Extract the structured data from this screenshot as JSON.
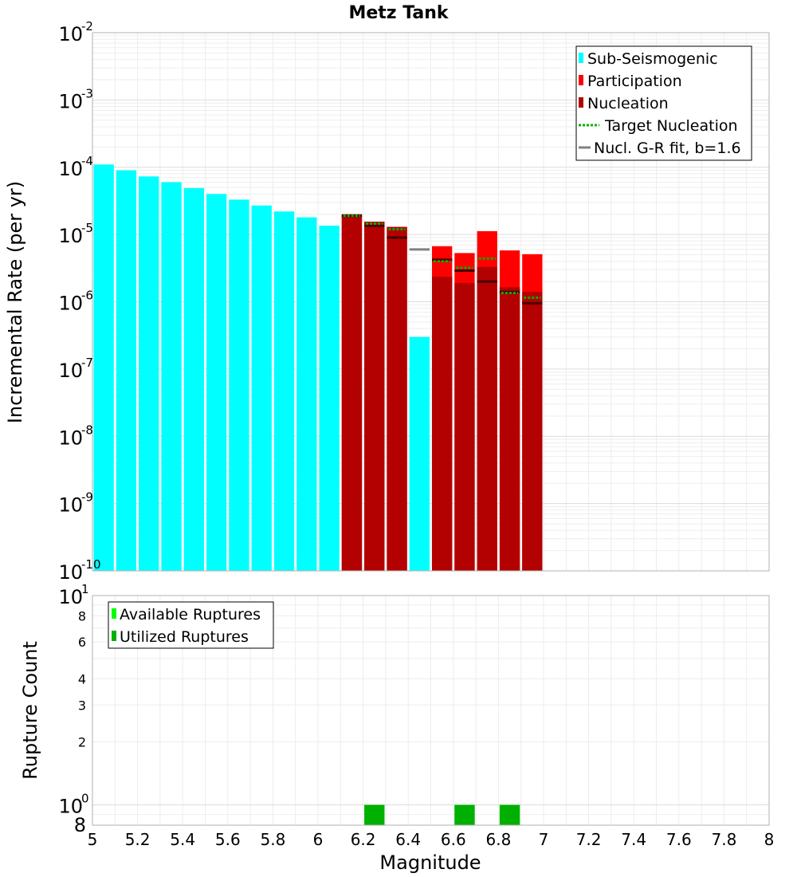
{
  "chart_data": [
    {
      "type": "bar",
      "title": "Metz Tank",
      "xlabel": "",
      "ylabel": "Incremental Rate (per yr)",
      "yscale": "log",
      "xlim": [
        5,
        8
      ],
      "ylim": [
        1e-10,
        0.01
      ],
      "y_ticks": [
        {
          "base": "10",
          "exp": "-10",
          "value": 1e-10
        },
        {
          "base": "10",
          "exp": "-9",
          "value": 1e-09
        },
        {
          "base": "10",
          "exp": "-8",
          "value": 1e-08
        },
        {
          "base": "10",
          "exp": "-7",
          "value": 1e-07
        },
        {
          "base": "10",
          "exp": "-6",
          "value": 1e-06
        },
        {
          "base": "10",
          "exp": "-5",
          "value": 1e-05
        },
        {
          "base": "10",
          "exp": "-4",
          "value": 0.0001
        },
        {
          "base": "10",
          "exp": "-3",
          "value": 0.001
        },
        {
          "base": "10",
          "exp": "-2",
          "value": 0.01
        }
      ],
      "legend_position": "top-right",
      "legend": [
        {
          "label": "Sub-Seismogenic",
          "color": "#00ffff",
          "style": "bar"
        },
        {
          "label": "Participation",
          "color": "#ff0000",
          "style": "bar"
        },
        {
          "label": "Nucleation",
          "color": "#b30000",
          "style": "bar"
        },
        {
          "label": "Target Nucleation",
          "color": "#00b000",
          "style": "dotted"
        },
        {
          "label": "Nucl. G-R fit, b=1.6",
          "color": "#808080",
          "style": "line"
        }
      ],
      "series": [
        {
          "name": "Sub-Seismogenic",
          "color": "#00ffff",
          "x": [
            5.05,
            5.15,
            5.25,
            5.35,
            5.45,
            5.55,
            5.65,
            5.75,
            5.85,
            5.95,
            6.05,
            6.45
          ],
          "values": [
            0.00011,
            9e-05,
            7.3e-05,
            6e-05,
            4.9e-05,
            4e-05,
            3.3e-05,
            2.7e-05,
            2.2e-05,
            1.8e-05,
            1.35e-05,
            3e-07
          ]
        },
        {
          "name": "Participation",
          "color": "#ff0000",
          "x": [
            6.15,
            6.25,
            6.35,
            6.55,
            6.65,
            6.75,
            6.85,
            6.95
          ],
          "values": [
            2e-05,
            1.55e-05,
            1.3e-05,
            6.7e-06,
            5.3e-06,
            1.12e-05,
            5.8e-06,
            5.1e-06
          ]
        },
        {
          "name": "Nucleation",
          "color": "#b30000",
          "x": [
            6.15,
            6.25,
            6.35,
            6.55,
            6.65,
            6.75,
            6.85,
            6.95
          ],
          "values": [
            2e-05,
            1.55e-05,
            1.3e-05,
            2.35e-06,
            1.9e-06,
            3.3e-06,
            1.65e-06,
            1.4e-06
          ]
        },
        {
          "name": "Target Nucleation",
          "color": "#00b000",
          "x": [
            6.15,
            6.25,
            6.35,
            6.55,
            6.65,
            6.75,
            6.85,
            6.95
          ],
          "values": [
            1.9e-05,
            1.45e-05,
            1.2e-05,
            4e-06,
            3.2e-06,
            4.4e-06,
            1.35e-06,
            1.15e-06
          ]
        },
        {
          "name": "Nucl. G-R fit, b=1.6",
          "color": "#808080",
          "x": [
            6.15,
            6.25,
            6.35,
            6.45,
            6.55,
            6.65,
            6.75,
            6.85,
            6.95
          ],
          "values": [
            1.9e-05,
            1.35e-05,
            9e-06,
            6e-06,
            4.2e-06,
            2.9e-06,
            2e-06,
            1.4e-06,
            9.5e-07
          ]
        }
      ]
    },
    {
      "type": "bar",
      "title": "",
      "xlabel": "Magnitude",
      "ylabel": "Rupture Count",
      "yscale": "log",
      "xlim": [
        5,
        8
      ],
      "ylim": [
        0.8,
        10
      ],
      "x_ticks": [
        "5",
        "5.2",
        "5.4",
        "5.6",
        "5.8",
        "6",
        "6.2",
        "6.4",
        "6.6",
        "6.8",
        "7",
        "7.2",
        "7.4",
        "7.6",
        "7.8",
        "8"
      ],
      "y_major_ticks": [
        {
          "base": "10",
          "exp": "0",
          "value": 1
        },
        {
          "base": "10",
          "exp": "1",
          "value": 10
        }
      ],
      "y_minor_ticks": [
        {
          "label": "2",
          "value": 2
        },
        {
          "label": "3",
          "value": 3
        },
        {
          "label": "4",
          "value": 4
        },
        {
          "label": "6",
          "value": 6
        },
        {
          "label": "8",
          "value": 8
        }
      ],
      "y_bottom_label": {
        "label": "8",
        "value": 0.8
      },
      "legend_position": "top-left",
      "legend": [
        {
          "label": "Available Ruptures",
          "color": "#00ff00"
        },
        {
          "label": "Utilized Ruptures",
          "color": "#00b000"
        }
      ],
      "series": [
        {
          "name": "Available Ruptures",
          "color": "#00ff00",
          "x": [
            6.25,
            6.65,
            6.85
          ],
          "values": [
            1,
            1,
            1
          ]
        },
        {
          "name": "Utilized Ruptures",
          "color": "#00b000",
          "x": [
            6.25,
            6.65,
            6.85
          ],
          "values": [
            1,
            1,
            1
          ]
        }
      ]
    }
  ]
}
